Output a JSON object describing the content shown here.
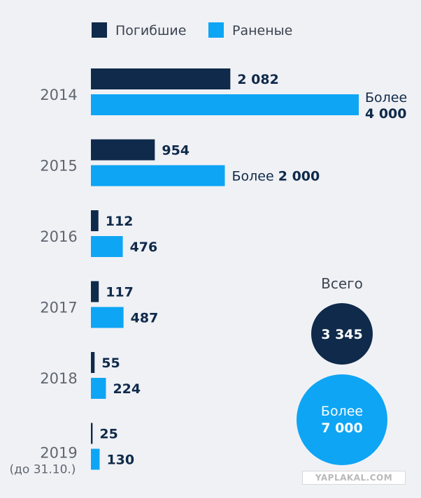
{
  "chart_data": {
    "type": "bar",
    "orientation": "horizontal",
    "legend_position": "top",
    "categories": [
      "2014",
      "2015",
      "2016",
      "2017",
      "2018",
      "2019"
    ],
    "category_notes": [
      "",
      "",
      "",
      "",
      "",
      "(до 31.10.)"
    ],
    "series": [
      {
        "name": "Погибшие",
        "color": "#0f2a4a",
        "values": [
          2082,
          954,
          112,
          117,
          55,
          25
        ],
        "value_labels": [
          "2 082",
          "954",
          "112",
          "117",
          "55",
          "25"
        ],
        "label_prefixes": [
          "",
          "",
          "",
          "",
          "",
          ""
        ]
      },
      {
        "name": "Раненые",
        "color": "#0ea5f5",
        "values": [
          4000,
          2000,
          476,
          487,
          224,
          130
        ],
        "value_labels": [
          "4 000",
          "2 000",
          "476",
          "487",
          "224",
          "130"
        ],
        "label_prefixes": [
          "Более",
          "Более",
          "",
          "",
          "",
          ""
        ]
      }
    ],
    "xlim": [
      0,
      4000
    ],
    "grid": false,
    "totals": {
      "title": "Всего",
      "killed": "3 345",
      "wounded_prefix": "Более",
      "wounded": "7 000"
    }
  },
  "watermark": "YAPLAKAL.COM"
}
